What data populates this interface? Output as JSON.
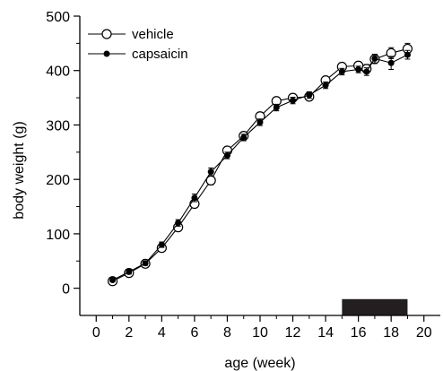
{
  "chart_data": {
    "type": "line",
    "xlabel": "age (week)",
    "ylabel": "body weight (g)",
    "xlim": [
      -1,
      21
    ],
    "ylim": [
      -50,
      500
    ],
    "xticks": [
      "0",
      "2",
      "4",
      "6",
      "8",
      "10",
      "12",
      "14",
      "16",
      "18",
      "20"
    ],
    "yticks": [
      "0",
      "100",
      "200",
      "300",
      "400",
      "500"
    ],
    "legend_position": "top-left",
    "series": [
      {
        "name": "vehicle",
        "marker": "open-circle",
        "x": [
          1,
          2,
          3,
          4,
          5,
          6,
          7,
          8,
          9,
          10,
          11,
          12,
          13,
          14,
          15,
          16,
          16.5,
          17,
          18,
          19
        ],
        "y": [
          13,
          28,
          45,
          74,
          112,
          155,
          198,
          253,
          280,
          316,
          344,
          350,
          352,
          382,
          407,
          409,
          403,
          421,
          432,
          440
        ],
        "err": [
          3,
          4,
          4,
          5,
          6,
          7,
          8,
          6,
          6,
          6,
          6,
          6,
          7,
          7,
          6,
          7,
          8,
          8,
          10,
          10
        ]
      },
      {
        "name": "capsaicin",
        "marker": "filled-circle",
        "x": [
          1,
          2,
          3,
          4,
          5,
          6,
          7,
          8,
          9,
          10,
          11,
          12,
          13,
          14,
          15,
          16,
          16.5,
          17,
          18,
          19
        ],
        "y": [
          15,
          30,
          46,
          80,
          120,
          166,
          214,
          244,
          277,
          305,
          332,
          345,
          355,
          373,
          398,
          402,
          398,
          422,
          414,
          429
        ],
        "err": [
          3,
          4,
          4,
          5,
          6,
          7,
          7,
          6,
          6,
          6,
          6,
          6,
          6,
          6,
          6,
          6,
          7,
          8,
          12,
          8
        ]
      }
    ],
    "annotations": [
      {
        "type": "bar",
        "x_start": 15,
        "x_end": 19,
        "y_start": -50,
        "y_end": -20,
        "color": "#231f20"
      }
    ]
  }
}
